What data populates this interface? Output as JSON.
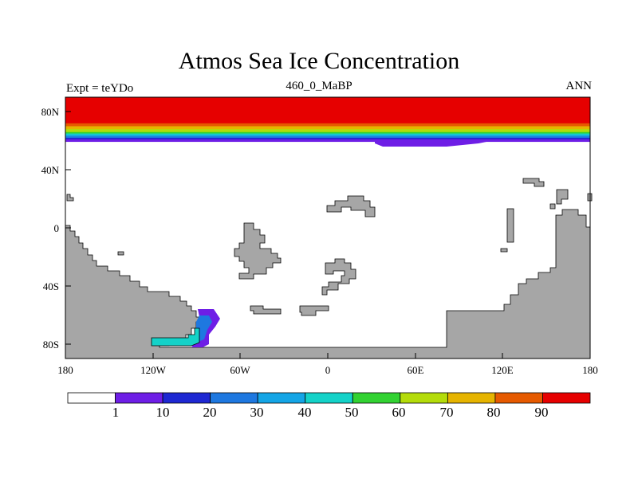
{
  "title": "Atmos Sea Ice Concentration",
  "left_label": "Expt = teYDo",
  "center_label": "460_0_MaBP",
  "right_label": "ANN",
  "colors": {
    "land": "#a6a6a6",
    "coast": "#000000",
    "scale": [
      "#ffffff",
      "#6e1ee6",
      "#1e28d2",
      "#1e78e0",
      "#14a5e6",
      "#14d2c8",
      "#32d232",
      "#b4dc0a",
      "#e6b400",
      "#e65a00",
      "#e60000"
    ]
  },
  "chart_data": {
    "type": "map",
    "variable": "Atmos Sea Ice Concentration",
    "units": "%",
    "projection": "cylindrical equidistant",
    "lon_range": [
      -180,
      180
    ],
    "lat_range": [
      -90,
      90
    ],
    "x_ticks": [
      "180",
      "120W",
      "60W",
      "0",
      "60E",
      "120E",
      "180"
    ],
    "y_ticks": [
      "80N",
      "40N",
      "0",
      "40S",
      "80S"
    ],
    "colorbar_levels": [
      "1",
      "10",
      "20",
      "30",
      "40",
      "50",
      "60",
      "70",
      "80",
      "90"
    ],
    "zonal_profile_north": [
      {
        "lat": 90,
        "value": 95
      },
      {
        "lat": 75,
        "value": 95
      },
      {
        "lat": 72,
        "value": 85
      },
      {
        "lat": 70,
        "value": 75
      },
      {
        "lat": 68,
        "value": 65
      },
      {
        "lat": 66,
        "value": 55
      },
      {
        "lat": 65,
        "value": 45
      },
      {
        "lat": 64,
        "value": 35
      },
      {
        "lat": 63,
        "value": 25
      },
      {
        "lat": 62,
        "value": 15
      },
      {
        "lat": 61,
        "value": 5
      }
    ],
    "southern_ice": "small patch near 80W-100W, 60S-80S (1-50%)"
  }
}
